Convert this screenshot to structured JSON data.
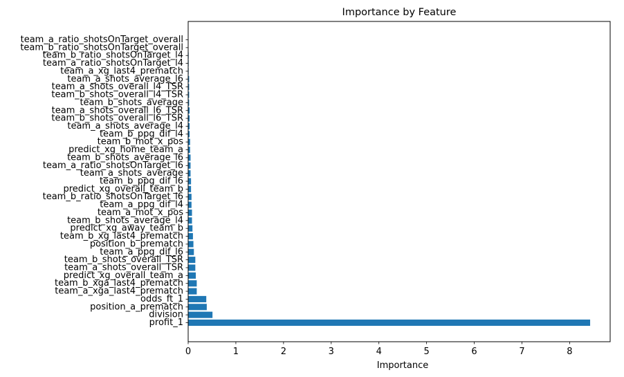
{
  "chart_data": {
    "type": "bar",
    "orientation": "horizontal",
    "title": "Importance by Feature",
    "xlabel": "Importance",
    "ylabel": "",
    "xlim": [
      0,
      8.85
    ],
    "xticks": [
      0,
      1,
      2,
      3,
      4,
      5,
      6,
      7,
      8
    ],
    "grid": false,
    "bar_color": "#1f77b4",
    "categories": [
      "profit_1",
      "division",
      "position_a_prematch",
      "odds_ft_1",
      "team_a_xga_last4_prematch",
      "team_b_xga_last4_prematch",
      "predict_xg_overall_team_a",
      "team_a_shots_overall_TSR",
      "team_b_shots_overall_TSR",
      "team_a_ppg_dif_l6",
      "position_b_prematch",
      "team_b_xg_last4_prematch",
      "predict_xg_away_team_b",
      "team_b_shots_average_l4",
      "team_a_mot_x_pos",
      "team_a_ppg_dif_l4",
      "team_b_ratio_shotsOnTarget_l6",
      "predict_xg_overall_team_b",
      "team_b_ppg_dif_l6",
      "team_a_shots_average",
      "team_a_ratio_shotsOnTarget_l6",
      "team_b_shots_average_l6",
      "predict_xg_home_team_a",
      "team_b_mot_x_pos",
      "team_b_ppg_dif_l4",
      "team_a_shots_average_l4",
      "team_b_shots_overall_l6_TSR",
      "team_a_shots_overall_l6_TSR",
      "team_b_shots_average",
      "team_b_shots_overall_l4_TSR",
      "team_a_shots_overall_l4_TSR",
      "team_a_shots_average_l6",
      "team_a_xg_last4_prematch",
      "team_a_ratio_shotsOnTarget_l4",
      "team_b_ratio_shotsOnTarget_l4",
      "team_b_ratio_shotsOnTarget_overall",
      "team_a_ratio_shotsOnTarget_overall"
    ],
    "values": [
      8.43,
      0.51,
      0.39,
      0.38,
      0.18,
      0.18,
      0.16,
      0.15,
      0.15,
      0.12,
      0.11,
      0.1,
      0.09,
      0.08,
      0.08,
      0.07,
      0.07,
      0.06,
      0.06,
      0.05,
      0.05,
      0.05,
      0.04,
      0.04,
      0.03,
      0.03,
      0.03,
      0.03,
      0.02,
      0.02,
      0.02,
      0.02,
      0.01,
      0.01,
      0.01,
      0.0,
      0.0
    ]
  }
}
